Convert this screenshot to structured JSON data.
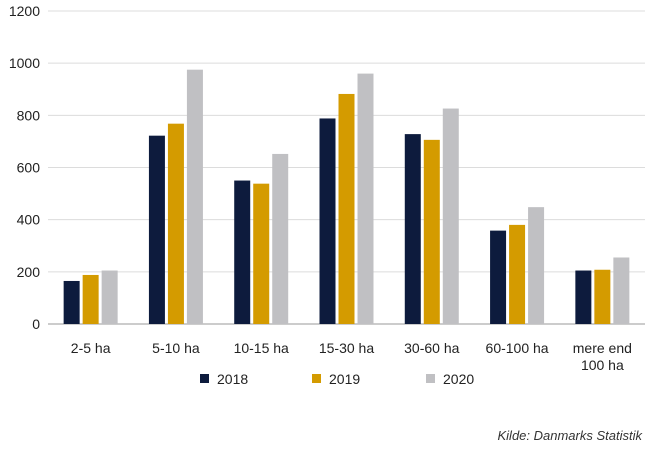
{
  "chart_data": {
    "type": "bar",
    "categories": [
      "2-5 ha",
      "5-10 ha",
      "10-15 ha",
      "15-30 ha",
      "30-60 ha",
      "60-100 ha",
      "mere end 100 ha"
    ],
    "category_lines": [
      [
        "2-5 ha"
      ],
      [
        "5-10 ha"
      ],
      [
        "10-15 ha"
      ],
      [
        "15-30 ha"
      ],
      [
        "30-60 ha"
      ],
      [
        "60-100 ha"
      ],
      [
        "mere end",
        "100 ha"
      ]
    ],
    "series": [
      {
        "name": "2018",
        "color": "#0d1b3d",
        "values": [
          165,
          722,
          550,
          788,
          728,
          358,
          205
        ]
      },
      {
        "name": "2019",
        "color": "#d49b00",
        "values": [
          188,
          768,
          538,
          882,
          706,
          380,
          208
        ]
      },
      {
        "name": "2020",
        "color": "#c0c0c3",
        "values": [
          205,
          975,
          652,
          960,
          826,
          448,
          255
        ]
      }
    ],
    "ylim": [
      0,
      1200
    ],
    "yticks": [
      0,
      200,
      400,
      600,
      800,
      1000,
      1200
    ],
    "grid": true,
    "legend_position": "bottom"
  },
  "source_text": "Kilde: Danmarks Statistik"
}
